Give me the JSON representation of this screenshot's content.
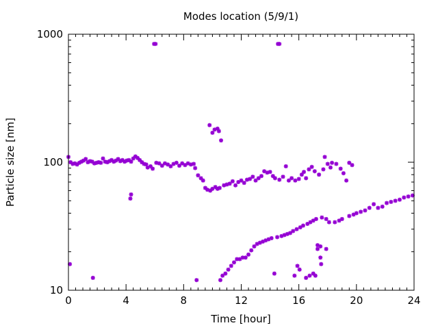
{
  "chart_data": {
    "type": "scatter",
    "title": "Modes location (5/9/1)",
    "xlabel": "Time [hour]",
    "ylabel": "Particle size [nm]",
    "xlim": [
      0,
      24
    ],
    "ylim": [
      10,
      1000
    ],
    "y_scale": "log",
    "grid": false,
    "legend": "none",
    "x_ticks": [
      0,
      4,
      8,
      12,
      16,
      20,
      24
    ],
    "x_tick_labels": [
      "0",
      "4",
      "8",
      "12",
      "16",
      "20",
      "24"
    ],
    "y_ticks": [
      10,
      100,
      1000
    ],
    "y_tick_labels": [
      "10",
      "100",
      "1000"
    ],
    "marker_color": "#9400d3",
    "series": [
      {
        "values": [
          [
            0.0,
            110
          ],
          [
            0.1,
            16
          ],
          [
            0.15,
            100
          ],
          [
            0.3,
            97
          ],
          [
            0.45,
            98
          ],
          [
            0.6,
            96
          ],
          [
            0.75,
            99
          ],
          [
            0.9,
            101
          ],
          [
            1.05,
            103
          ],
          [
            1.2,
            106
          ],
          [
            1.35,
            100
          ],
          [
            1.5,
            102
          ],
          [
            1.65,
            101
          ],
          [
            1.7,
            12.5
          ],
          [
            1.8,
            98
          ],
          [
            1.95,
            99
          ],
          [
            2.1,
            100
          ],
          [
            2.25,
            99
          ],
          [
            2.4,
            107
          ],
          [
            2.55,
            101
          ],
          [
            2.7,
            100
          ],
          [
            2.85,
            102
          ],
          [
            3.0,
            104
          ],
          [
            3.15,
            101
          ],
          [
            3.3,
            103
          ],
          [
            3.45,
            106
          ],
          [
            3.6,
            102
          ],
          [
            3.75,
            104
          ],
          [
            3.9,
            101
          ],
          [
            4.05,
            103
          ],
          [
            4.2,
            104
          ],
          [
            4.3,
            52
          ],
          [
            4.35,
            56
          ],
          [
            4.35,
            101
          ],
          [
            4.5,
            107
          ],
          [
            4.65,
            111
          ],
          [
            4.8,
            108
          ],
          [
            4.95,
            104
          ],
          [
            5.1,
            100
          ],
          [
            5.25,
            97
          ],
          [
            5.4,
            96
          ],
          [
            5.5,
            91
          ],
          [
            5.7,
            93
          ],
          [
            5.85,
            89
          ],
          [
            5.95,
            840
          ],
          [
            6.05,
            840
          ],
          [
            6.1,
            99
          ],
          [
            6.3,
            98
          ],
          [
            6.5,
            94
          ],
          [
            6.7,
            98
          ],
          [
            6.9,
            96
          ],
          [
            7.1,
            93
          ],
          [
            7.3,
            97
          ],
          [
            7.5,
            99
          ],
          [
            7.7,
            94
          ],
          [
            7.9,
            98
          ],
          [
            8.1,
            95
          ],
          [
            8.3,
            98
          ],
          [
            8.5,
            96
          ],
          [
            8.7,
            97
          ],
          [
            8.9,
            12
          ],
          [
            8.8,
            90
          ],
          [
            9.0,
            79
          ],
          [
            9.2,
            75
          ],
          [
            9.35,
            72
          ],
          [
            9.5,
            63
          ],
          [
            9.65,
            61
          ],
          [
            9.8,
            195
          ],
          [
            9.85,
            60
          ],
          [
            10.0,
            170
          ],
          [
            10.0,
            62
          ],
          [
            10.15,
            180
          ],
          [
            10.2,
            64
          ],
          [
            10.35,
            183
          ],
          [
            10.35,
            62
          ],
          [
            10.45,
            175
          ],
          [
            10.5,
            63
          ],
          [
            10.6,
            148
          ],
          [
            10.55,
            12
          ],
          [
            10.7,
            13
          ],
          [
            10.8,
            66
          ],
          [
            10.9,
            13.5
          ],
          [
            11.0,
            67
          ],
          [
            11.1,
            14.5
          ],
          [
            11.2,
            68
          ],
          [
            11.3,
            15.5
          ],
          [
            11.4,
            71
          ],
          [
            11.5,
            16.5
          ],
          [
            11.6,
            66
          ],
          [
            11.7,
            17.5
          ],
          [
            11.8,
            70
          ],
          [
            11.9,
            17.5
          ],
          [
            12.0,
            72
          ],
          [
            12.1,
            18
          ],
          [
            12.2,
            69
          ],
          [
            12.3,
            18
          ],
          [
            12.4,
            73
          ],
          [
            12.5,
            19
          ],
          [
            12.6,
            74
          ],
          [
            12.7,
            20.5
          ],
          [
            12.8,
            77
          ],
          [
            12.9,
            22
          ],
          [
            13.0,
            72
          ],
          [
            13.1,
            23
          ],
          [
            13.2,
            75
          ],
          [
            13.3,
            23.5
          ],
          [
            13.4,
            78
          ],
          [
            13.5,
            24
          ],
          [
            13.6,
            85
          ],
          [
            13.7,
            24.5
          ],
          [
            13.8,
            83
          ],
          [
            13.9,
            25
          ],
          [
            14.0,
            84
          ],
          [
            14.1,
            25.5
          ],
          [
            14.2,
            78
          ],
          [
            14.3,
            13.5
          ],
          [
            14.35,
            75
          ],
          [
            14.5,
            26
          ],
          [
            14.55,
            840
          ],
          [
            14.65,
            840
          ],
          [
            14.65,
            73
          ],
          [
            14.8,
            26.5
          ],
          [
            14.9,
            77
          ],
          [
            15.0,
            27
          ],
          [
            15.1,
            93
          ],
          [
            15.2,
            27.5
          ],
          [
            15.3,
            72
          ],
          [
            15.4,
            28
          ],
          [
            15.5,
            75
          ],
          [
            15.6,
            29
          ],
          [
            15.7,
            13
          ],
          [
            15.75,
            72
          ],
          [
            15.85,
            30
          ],
          [
            15.9,
            15.5
          ],
          [
            16.0,
            74
          ],
          [
            16.05,
            14.5
          ],
          [
            16.1,
            31
          ],
          [
            16.2,
            80
          ],
          [
            16.3,
            32
          ],
          [
            16.35,
            84
          ],
          [
            16.5,
            75
          ],
          [
            16.5,
            12.5
          ],
          [
            16.6,
            33
          ],
          [
            16.7,
            88
          ],
          [
            16.75,
            13
          ],
          [
            16.8,
            34
          ],
          [
            16.9,
            92
          ],
          [
            17.0,
            13.5
          ],
          [
            17.0,
            35
          ],
          [
            17.1,
            85
          ],
          [
            17.15,
            13
          ],
          [
            17.2,
            36
          ],
          [
            17.3,
            21
          ],
          [
            17.3,
            22.5
          ],
          [
            17.4,
            80
          ],
          [
            17.5,
            22
          ],
          [
            17.5,
            18
          ],
          [
            17.55,
            16
          ],
          [
            17.6,
            37
          ],
          [
            17.7,
            88
          ],
          [
            17.8,
            110
          ],
          [
            17.9,
            36
          ],
          [
            17.9,
            21
          ],
          [
            18.0,
            97
          ],
          [
            18.1,
            34
          ],
          [
            18.2,
            91
          ],
          [
            18.3,
            99
          ],
          [
            18.5,
            34
          ],
          [
            18.6,
            97
          ],
          [
            18.8,
            35
          ],
          [
            18.9,
            89
          ],
          [
            19.0,
            36
          ],
          [
            19.1,
            82
          ],
          [
            19.3,
            72
          ],
          [
            19.5,
            99
          ],
          [
            19.5,
            38
          ],
          [
            19.7,
            95
          ],
          [
            19.8,
            39
          ],
          [
            20.0,
            40
          ],
          [
            20.3,
            41
          ],
          [
            20.6,
            42
          ],
          [
            20.9,
            44
          ],
          [
            21.2,
            47
          ],
          [
            21.5,
            44
          ],
          [
            21.8,
            45
          ],
          [
            22.1,
            48
          ],
          [
            22.4,
            49
          ],
          [
            22.7,
            50
          ],
          [
            23.0,
            51
          ],
          [
            23.3,
            53
          ],
          [
            23.6,
            54
          ],
          [
            23.9,
            55
          ]
        ]
      }
    ]
  }
}
